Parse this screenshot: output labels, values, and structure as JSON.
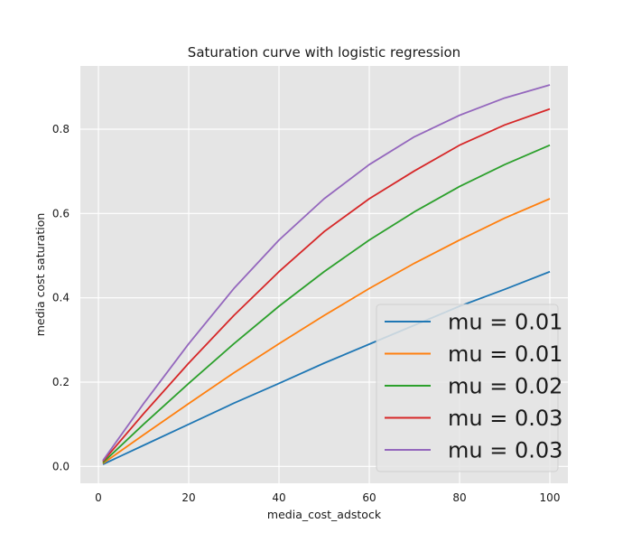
{
  "chart_data": {
    "type": "line",
    "title": "Saturation curve with logistic regression",
    "xlabel": "media_cost_adstock",
    "ylabel": "media cost saturation",
    "xlim": [
      -4,
      104
    ],
    "ylim": [
      -0.04,
      0.95
    ],
    "xticks": [
      0,
      20,
      40,
      60,
      80,
      100
    ],
    "yticks": [
      0.0,
      0.2,
      0.4,
      0.6,
      0.8
    ],
    "grid": true,
    "legend_position": "bottom-right",
    "x": [
      1,
      10,
      20,
      30,
      40,
      50,
      60,
      70,
      80,
      90,
      100
    ],
    "series": [
      {
        "name": "mu = 0.01",
        "color": "#1f77b4",
        "values": [
          0.005,
          0.05,
          0.1,
          0.15,
          0.197,
          0.245,
          0.29,
          0.335,
          0.38,
          0.42,
          0.462
        ]
      },
      {
        "name": "mu = 0.01",
        "color": "#ff7f0e",
        "values": [
          0.007,
          0.075,
          0.149,
          0.222,
          0.291,
          0.358,
          0.422,
          0.482,
          0.537,
          0.589,
          0.635
        ]
      },
      {
        "name": "mu = 0.02",
        "color": "#2ca02c",
        "values": [
          0.009,
          0.1,
          0.197,
          0.291,
          0.38,
          0.462,
          0.537,
          0.604,
          0.664,
          0.716,
          0.762
        ]
      },
      {
        "name": "mu = 0.03",
        "color": "#d62728",
        "values": [
          0.012,
          0.125,
          0.245,
          0.358,
          0.462,
          0.557,
          0.635,
          0.701,
          0.762,
          0.81,
          0.848
        ]
      },
      {
        "name": "mu = 0.03",
        "color": "#9467bd",
        "values": [
          0.014,
          0.149,
          0.291,
          0.422,
          0.537,
          0.635,
          0.716,
          0.782,
          0.833,
          0.874,
          0.905
        ]
      }
    ]
  }
}
